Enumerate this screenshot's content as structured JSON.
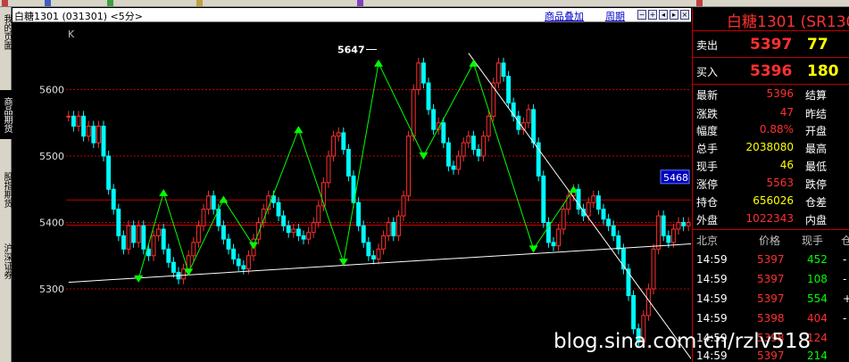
{
  "header": {
    "title": "白糖1301 (031301) <5分>",
    "overlay_label": "商品叠加",
    "period_label": "周期"
  },
  "left_tabs": [
    {
      "label": "我的页面"
    },
    {
      "label": "商品期货"
    },
    {
      "label": "股指期货"
    },
    {
      "label": "沪深证券"
    }
  ],
  "chart_data": {
    "type": "candlestick",
    "title": "白糖1301 (031301) <5分>",
    "indicator_label": "K",
    "y_ticks": [
      5300,
      5400,
      5500,
      5600
    ],
    "ylim": [
      5190,
      5700
    ],
    "annotation_high_label": "5647",
    "price_tag": "5468",
    "hlines": [
      5600,
      5500,
      5434,
      5400,
      5396,
      5300
    ],
    "close_path": [
      5560,
      5545,
      5560,
      5530,
      5545,
      5520,
      5545,
      5500,
      5450,
      5420,
      5380,
      5360,
      5395,
      5370,
      5395,
      5360,
      5350,
      5380,
      5390,
      5360,
      5340,
      5325,
      5315,
      5330,
      5350,
      5370,
      5395,
      5420,
      5440,
      5420,
      5395,
      5375,
      5360,
      5345,
      5335,
      5330,
      5350,
      5375,
      5400,
      5420,
      5440,
      5430,
      5410,
      5395,
      5385,
      5390,
      5380,
      5375,
      5385,
      5400,
      5425,
      5460,
      5500,
      5530,
      5535,
      5510,
      5470,
      5430,
      5395,
      5370,
      5350,
      5345,
      5360,
      5380,
      5400,
      5380,
      5410,
      5440,
      5530,
      5600,
      5640,
      5610,
      5570,
      5540,
      5550,
      5520,
      5485,
      5480,
      5500,
      5520,
      5530,
      5510,
      5500,
      5530,
      5560,
      5610,
      5640,
      5620,
      5580,
      5560,
      5540,
      5550,
      5570,
      5520,
      5470,
      5400,
      5370,
      5365,
      5390,
      5420,
      5440,
      5450,
      5420,
      5410,
      5430,
      5440,
      5420,
      5405,
      5395,
      5380,
      5360,
      5330,
      5290,
      5240,
      5220,
      5260,
      5300,
      5360,
      5410,
      5380,
      5370,
      5390,
      5400,
      5395,
      5400
    ],
    "zigzag": [
      {
        "i": 14,
        "v": 5315
      },
      {
        "i": 19,
        "v": 5445
      },
      {
        "i": 24,
        "v": 5325
      },
      {
        "i": 31,
        "v": 5435
      },
      {
        "i": 37,
        "v": 5365
      },
      {
        "i": 46,
        "v": 5540
      },
      {
        "i": 55,
        "v": 5340
      },
      {
        "i": 62,
        "v": 5640
      },
      {
        "i": 71,
        "v": 5500
      },
      {
        "i": 81,
        "v": 5640
      },
      {
        "i": 93,
        "v": 5360
      },
      {
        "i": 101,
        "v": 5450
      }
    ],
    "trendlines": [
      {
        "from": {
          "i": 0,
          "v": 5310
        },
        "to": {
          "i": 125,
          "v": 5368
        }
      },
      {
        "from": {
          "i": 80,
          "v": 5655
        },
        "to": {
          "i": 125,
          "v": 5190
        }
      }
    ]
  },
  "panel": {
    "title": "白糖1301 (SR130",
    "sell": {
      "label": "卖出",
      "price": "5397",
      "volume": "77"
    },
    "buy": {
      "label": "买入",
      "price": "5396",
      "volume": "180"
    },
    "stats": [
      {
        "left_label": "最新",
        "left_value": "5396",
        "right_label": "结算"
      },
      {
        "left_label": "涨跌",
        "left_value": "47",
        "right_label": "昨结"
      },
      {
        "left_label": "幅度",
        "left_value": "0.88%",
        "right_label": "开盘"
      },
      {
        "left_label": "总手",
        "left_value": "2038080",
        "right_label": "最高"
      },
      {
        "left_label": "现手",
        "left_value": "46",
        "right_label": "最低"
      },
      {
        "left_label": "涨停",
        "left_value": "5563",
        "right_label": "跌停"
      },
      {
        "left_label": "持仓",
        "left_value": "656026",
        "right_label": "仓差"
      },
      {
        "left_label": "外盘",
        "left_value": "1022343",
        "right_label": "内盘"
      }
    ],
    "ticks_header": {
      "location": "北京",
      "price": "价格",
      "volume": "现手",
      "extra": "仓"
    },
    "ticks": [
      {
        "time": "14:59",
        "price": "5397",
        "volume": "452",
        "extra": "-"
      },
      {
        "time": "14:59",
        "price": "5397",
        "volume": "108",
        "extra": "-"
      },
      {
        "time": "14:59",
        "price": "5397",
        "volume": "554",
        "extra": "+"
      },
      {
        "time": "14:59",
        "price": "5398",
        "volume": "404",
        "extra": "-"
      },
      {
        "time": "14:59",
        "price": "5398",
        "volume": "124",
        "extra": ""
      },
      {
        "time": "14:59",
        "price": "5397",
        "volume": "214",
        "extra": ""
      }
    ]
  },
  "watermark": "blog.sina.com.cn/rzlv518",
  "colors": {
    "up": "#ff3030",
    "down": "#00ffff",
    "zigzag": "#00ff00",
    "grid": "#c00000",
    "trendline": "#ffffff"
  }
}
